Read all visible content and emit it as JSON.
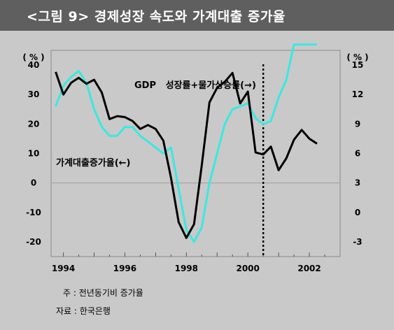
{
  "title": "<그림 9> 경제성장 속도와 가계대출 증가율",
  "notes": {
    "note1": "주 : 전년동기비 증가율",
    "note2": "자료 : 한국은행"
  },
  "colors": {
    "gdp_line": "#000000",
    "loan_line": "#3ce8e0",
    "background": "#c9c9c9",
    "title_bar": "#5f5f5f"
  },
  "chart_data": {
    "type": "line",
    "x_axis": {
      "range": [
        1993.6,
        2003.0
      ],
      "tick_labels": [
        "1994",
        "1996",
        "1998",
        "2000",
        "2002"
      ],
      "tick_values": [
        1994,
        1996,
        1998,
        2000,
        2002
      ]
    },
    "left_axis": {
      "unit": "( % )",
      "range": [
        -25,
        45
      ],
      "tick_labels": [
        "40",
        "30",
        "20",
        "10",
        "0",
        "-10",
        "-20"
      ],
      "tick_values": [
        40,
        30,
        20,
        10,
        0,
        -10,
        -20
      ]
    },
    "right_axis": {
      "unit": "( % )",
      "range": [
        -4.5,
        16.5
      ],
      "tick_labels": [
        "15",
        "12",
        "9",
        "6",
        "3",
        "0",
        "-3"
      ],
      "tick_values": [
        15,
        12,
        9,
        6,
        3,
        0,
        -3
      ]
    },
    "zero_line": true,
    "divider_x": 2000.5,
    "series": [
      {
        "name": "GDP 성장률+물가상승률(→)",
        "axis": "right",
        "x": [
          1993.75,
          1994.0,
          1994.25,
          1994.5,
          1994.75,
          1995.0,
          1995.25,
          1995.5,
          1995.75,
          1996.0,
          1996.25,
          1996.5,
          1996.75,
          1997.0,
          1997.25,
          1997.5,
          1997.75,
          1998.0,
          1998.25,
          1998.5,
          1998.75,
          1999.0,
          1999.25,
          1999.5,
          1999.75,
          2000.0,
          2000.25,
          2000.5,
          2000.75,
          2001.0,
          2001.25,
          2001.5,
          2001.75,
          2002.0,
          2002.25
        ],
        "values": [
          14.3,
          12.0,
          13.2,
          13.7,
          13.1,
          13.5,
          12.2,
          9.5,
          9.8,
          9.7,
          9.3,
          8.5,
          8.9,
          8.5,
          7.3,
          3.5,
          -1.0,
          -2.6,
          -1.2,
          4.8,
          11.2,
          12.7,
          13.3,
          14.2,
          11.1,
          12.3,
          6.1,
          5.9,
          6.7,
          4.3,
          5.5,
          7.4,
          8.4,
          7.5,
          7.0
        ]
      },
      {
        "name": "가계대출증가율(←)",
        "axis": "left",
        "x": [
          1993.75,
          1994.0,
          1994.25,
          1994.5,
          1994.75,
          1995.0,
          1995.25,
          1995.5,
          1995.75,
          1996.0,
          1996.25,
          1996.5,
          1996.75,
          1997.0,
          1997.25,
          1997.5,
          1997.75,
          1998.0,
          1998.25,
          1998.5,
          1998.75,
          1999.0,
          1999.25,
          1999.5,
          1999.75,
          2000.0,
          2000.25,
          2000.5,
          2000.75,
          2001.0,
          2001.25,
          2001.5,
          2001.75,
          2002.0,
          2002.25
        ],
        "values": [
          26,
          33,
          36,
          38,
          34,
          25,
          19,
          16,
          16,
          19,
          19,
          16,
          14,
          12,
          10,
          12,
          -2,
          -16,
          -20,
          -15,
          0,
          10,
          20,
          25,
          26,
          27,
          22,
          20,
          21,
          29,
          35,
          47,
          47,
          47,
          47
        ]
      }
    ],
    "annotations": [
      {
        "text": "GDP   성장률+물가상승률(→)",
        "series": 0
      },
      {
        "text": "가계대출증가율(←)",
        "series": 1
      }
    ]
  }
}
